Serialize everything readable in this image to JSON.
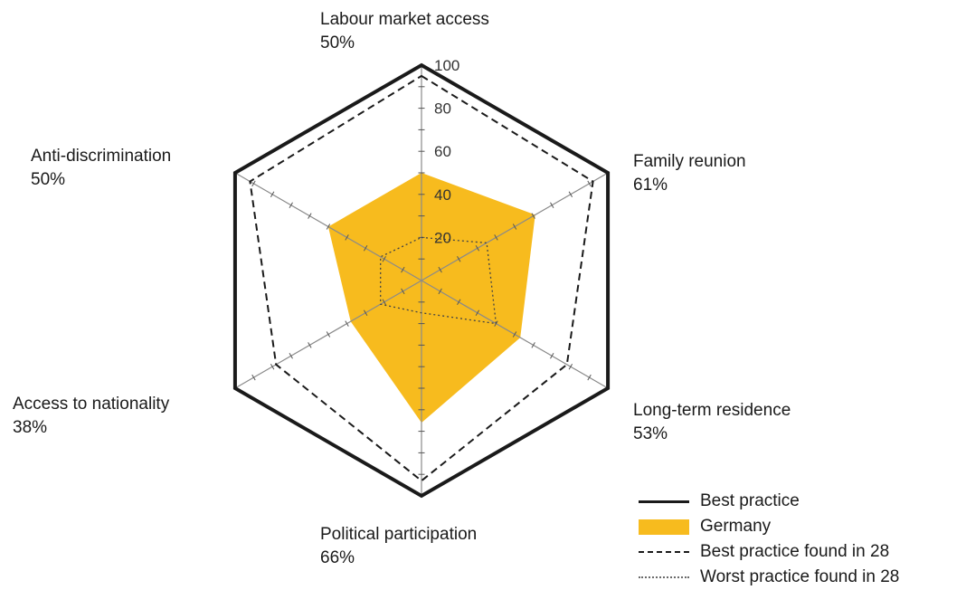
{
  "chart_data": {
    "type": "radar",
    "title": "",
    "axes": [
      {
        "name": "Labour market access",
        "value_label": "50%"
      },
      {
        "name": "Family reunion",
        "value_label": "61%"
      },
      {
        "name": "Long-term residence",
        "value_label": "53%"
      },
      {
        "name": "Political participation",
        "value_label": "66%"
      },
      {
        "name": "Access to nationality",
        "value_label": "38%"
      },
      {
        "name": "Anti-discrimination",
        "value_label": "50%"
      }
    ],
    "rlim": [
      0,
      100
    ],
    "ticks": [
      "20",
      "40",
      "60",
      "80",
      "100"
    ],
    "tick_values": [
      20,
      40,
      60,
      80,
      100
    ],
    "series": [
      {
        "name": "Best practice",
        "values": [
          100,
          100,
          100,
          100,
          100,
          100
        ],
        "color": "#1a1a1a",
        "style": "solid"
      },
      {
        "name": "Germany",
        "values": [
          50,
          61,
          53,
          66,
          38,
          50
        ],
        "color": "#f7bb1e",
        "style": "fill"
      },
      {
        "name": "Best practice found in 28",
        "values": [
          95,
          92,
          78,
          93,
          78,
          92
        ],
        "color": "#1a1a1a",
        "style": "dashed"
      },
      {
        "name": "Worst practice found in 28",
        "values": [
          20,
          35,
          40,
          15,
          22,
          22
        ],
        "color": "#555555",
        "style": "dotted"
      }
    ],
    "legend_position": "bottom-right"
  }
}
